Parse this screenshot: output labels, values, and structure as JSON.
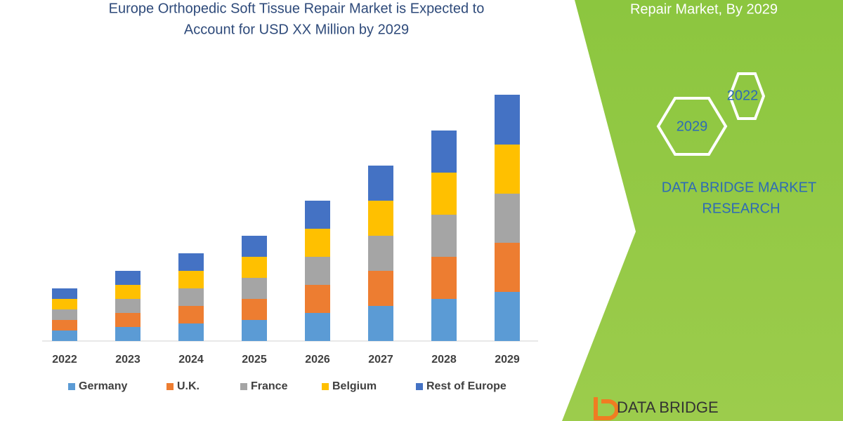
{
  "chart_data": {
    "type": "bar",
    "stacked": true,
    "title": [
      "Europe Orthopedic Soft Tissue Repair Market is Expected to",
      "Account for USD XX Million by 2029"
    ],
    "categories": [
      "2022",
      "2023",
      "2024",
      "2025",
      "2026",
      "2027",
      "2028",
      "2029"
    ],
    "series": [
      {
        "name": "Germany",
        "color": "#5b9bd5",
        "values": [
          15,
          20,
          25,
          30,
          40,
          50,
          60,
          70
        ]
      },
      {
        "name": "U.K.",
        "color": "#ed7d31",
        "values": [
          15,
          20,
          25,
          30,
          40,
          50,
          60,
          70
        ]
      },
      {
        "name": "France",
        "color": "#a5a5a5",
        "values": [
          15,
          20,
          25,
          30,
          40,
          50,
          60,
          70
        ]
      },
      {
        "name": "Belgium",
        "color": "#ffc000",
        "values": [
          15,
          20,
          25,
          30,
          40,
          50,
          60,
          70
        ]
      },
      {
        "name": "Rest of Europe",
        "color": "#4472c4",
        "values": [
          15,
          20,
          25,
          30,
          40,
          50,
          60,
          71
        ]
      }
    ]
  },
  "side_panel": {
    "heading": "Repair Market, By 2029",
    "hexagons": [
      "2022",
      "2029"
    ],
    "brand": [
      "DATA BRIDGE MARKET",
      "RESEARCH"
    ],
    "logo": "DATA BRIDGE"
  }
}
